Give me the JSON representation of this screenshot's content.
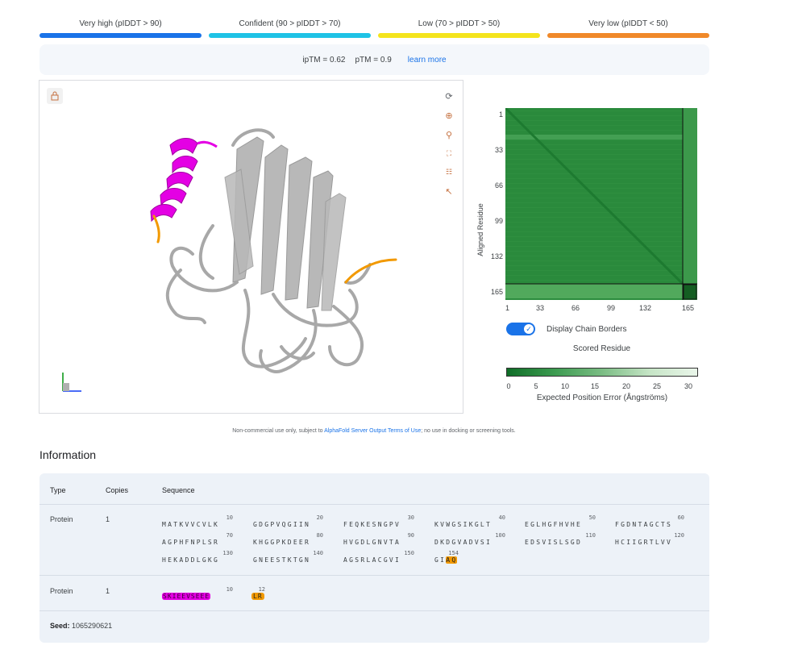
{
  "legend": [
    {
      "label": "Very high (pIDDT > 90)",
      "color": "#1a73e8"
    },
    {
      "label": "Confident (90 > pIDDT > 70)",
      "color": "#1fc3e6"
    },
    {
      "label": "Low (70 > pIDDT > 50)",
      "color": "#f4e41d"
    },
    {
      "label": "Very low (pIDDT < 50)",
      "color": "#f0892a"
    }
  ],
  "metrics": {
    "iptm": "ipTM = 0.62",
    "ptm": "pTM = 0.9",
    "learn_more": "learn more"
  },
  "viewer_icons": [
    "lock-icon",
    "rotate-icon",
    "target-icon",
    "zoom-icon",
    "fullscreen-icon",
    "tune-icon",
    "cursor-icon"
  ],
  "pae": {
    "y_axis_label": "Aligned Residue",
    "x_axis_label": "Scored Residue",
    "y_ticks": [
      "1",
      "33",
      "66",
      "99",
      "132",
      "165"
    ],
    "x_ticks": [
      "1",
      "33",
      "66",
      "99",
      "132",
      "165"
    ],
    "chain_borders_label": "Display Chain Borders",
    "chain_borders_on": true,
    "colorbar_ticks": [
      "0",
      "5",
      "10",
      "15",
      "20",
      "25",
      "30"
    ],
    "colorbar_title": "Expected Position Error (Ångströms)"
  },
  "terms": {
    "prefix": "Non-commercial use only, subject to",
    "link": "AlphaFold Server Output Terms of Use",
    "suffix": "; no use in docking or screening tools."
  },
  "info": {
    "title": "Information",
    "headers": {
      "type": "Type",
      "copies": "Copies",
      "sequence": "Sequence"
    },
    "rows": [
      {
        "type": "Protein",
        "copies": "1",
        "lines": [
          {
            "groups": [
              "MATKVVCVLK",
              "GDGPVQGIIN",
              "FEQKESNGPV",
              "KVWGSIKGLT",
              "EGLHGFHVHE",
              "FGDNTAGCTS"
            ],
            "nums": [
              "10",
              "20",
              "30",
              "40",
              "50",
              "60"
            ]
          },
          {
            "groups": [
              "AGPHFNPLSR",
              "KHGGPKDEER",
              "HVGDLGNVTA",
              "DKDGVADVSI",
              "EDSVISLSGD",
              "HCIIGRTLVV"
            ],
            "nums": [
              "70",
              "80",
              "90",
              "100",
              "110",
              "120"
            ]
          },
          {
            "groups": [
              "HEKADDLGKG",
              "GNEESTKTGN",
              "AGSRLACGVI",
              "GI"
            ],
            "nums": [
              "130",
              "140",
              "150",
              "154"
            ],
            "highlight": "AQ"
          }
        ]
      },
      {
        "type": "Protein",
        "copies": "1",
        "pink_seq": "SKIEEVSEEE",
        "pink_num": "10",
        "orange_seq": "LR",
        "orange_num": "12"
      }
    ],
    "seed_label": "Seed:",
    "seed_value": "1065290621"
  }
}
